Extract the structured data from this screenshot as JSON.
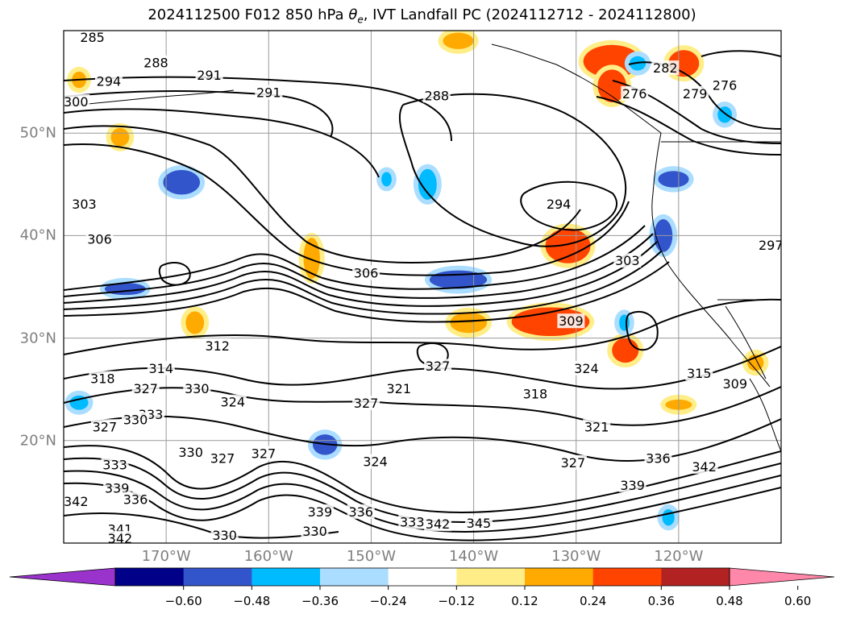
{
  "title": {
    "prefix": "2024112500 F012 850 hPa ",
    "symbol": "θ",
    "subscript": "e",
    "suffix": ", IVT Landfall PC (2024112712 - 2024112800)"
  },
  "map": {
    "projection": "equirectangular",
    "lon_range": [
      -180,
      -110
    ],
    "lat_range": [
      10,
      60
    ],
    "grid": true,
    "grid_color": "#999999",
    "coastline_color": "#000000",
    "lat_labels": [
      "50°N",
      "40°N",
      "30°N",
      "20°N"
    ],
    "lat_values": [
      50,
      40,
      30,
      20
    ],
    "lon_labels": [
      "170°W",
      "160°W",
      "150°W",
      "140°W",
      "130°W",
      "120°W"
    ],
    "lon_values": [
      -170,
      -160,
      -150,
      -140,
      -130,
      -120
    ],
    "contour_field": "850 hPa theta-e",
    "contour_labels": [
      {
        "text": "285",
        "lon": -177.2,
        "lat": 59.3
      },
      {
        "text": "288",
        "lon": -171.0,
        "lat": 56.8
      },
      {
        "text": "291",
        "lon": -165.8,
        "lat": 55.6
      },
      {
        "text": "294",
        "lon": -175.6,
        "lat": 55.0
      },
      {
        "text": "291",
        "lon": -160.0,
        "lat": 53.9
      },
      {
        "text": "300",
        "lon": -178.8,
        "lat": 53.0
      },
      {
        "text": "288",
        "lon": -143.6,
        "lat": 53.6
      },
      {
        "text": "282",
        "lon": -121.3,
        "lat": 56.3
      },
      {
        "text": "276",
        "lon": -124.3,
        "lat": 53.8
      },
      {
        "text": "279",
        "lon": -118.4,
        "lat": 53.8
      },
      {
        "text": "276",
        "lon": -115.5,
        "lat": 54.6
      },
      {
        "text": "294",
        "lon": -131.7,
        "lat": 43.0
      },
      {
        "text": "303",
        "lon": -178.0,
        "lat": 43.0
      },
      {
        "text": "306",
        "lon": -176.5,
        "lat": 39.6
      },
      {
        "text": "306",
        "lon": -150.5,
        "lat": 36.3
      },
      {
        "text": "303",
        "lon": -125.0,
        "lat": 37.5
      },
      {
        "text": "309",
        "lon": -130.5,
        "lat": 31.6
      },
      {
        "text": "312",
        "lon": -165.0,
        "lat": 29.2
      },
      {
        "text": "314",
        "lon": -170.5,
        "lat": 27.0
      },
      {
        "text": "327",
        "lon": -143.5,
        "lat": 27.2
      },
      {
        "text": "324",
        "lon": -129.0,
        "lat": 27.0
      },
      {
        "text": "315",
        "lon": -118.0,
        "lat": 26.5
      },
      {
        "text": "309",
        "lon": -114.5,
        "lat": 25.5
      },
      {
        "text": "318",
        "lon": -176.2,
        "lat": 26.0
      },
      {
        "text": "327",
        "lon": -172.0,
        "lat": 25.0
      },
      {
        "text": "330",
        "lon": -167.0,
        "lat": 25.0
      },
      {
        "text": "324",
        "lon": -163.5,
        "lat": 23.7
      },
      {
        "text": "327",
        "lon": -150.5,
        "lat": 23.6
      },
      {
        "text": "321",
        "lon": -147.3,
        "lat": 25.0
      },
      {
        "text": "318",
        "lon": -134.0,
        "lat": 24.5
      },
      {
        "text": "333",
        "lon": -171.5,
        "lat": 22.5
      },
      {
        "text": "330",
        "lon": -173.0,
        "lat": 22.0
      },
      {
        "text": "327",
        "lon": -176.0,
        "lat": 21.3
      },
      {
        "text": "321",
        "lon": -128.0,
        "lat": 21.3
      },
      {
        "text": "330",
        "lon": -167.6,
        "lat": 18.8
      },
      {
        "text": "327",
        "lon": -164.5,
        "lat": 18.2
      },
      {
        "text": "327",
        "lon": -160.5,
        "lat": 18.7
      },
      {
        "text": "324",
        "lon": -149.6,
        "lat": 17.9
      },
      {
        "text": "327",
        "lon": -130.3,
        "lat": 17.8
      },
      {
        "text": "336",
        "lon": -122.0,
        "lat": 18.2
      },
      {
        "text": "342",
        "lon": -117.5,
        "lat": 17.4
      },
      {
        "text": "333",
        "lon": -175.0,
        "lat": 17.6
      },
      {
        "text": "339",
        "lon": -174.8,
        "lat": 15.3
      },
      {
        "text": "336",
        "lon": -173.0,
        "lat": 14.2
      },
      {
        "text": "339",
        "lon": -124.5,
        "lat": 15.6
      },
      {
        "text": "342",
        "lon": -178.8,
        "lat": 14.0
      },
      {
        "text": "339",
        "lon": -155.0,
        "lat": 13.0
      },
      {
        "text": "336",
        "lon": -151.0,
        "lat": 13.0
      },
      {
        "text": "333",
        "lon": -146.0,
        "lat": 12.0
      },
      {
        "text": "342",
        "lon": -143.5,
        "lat": 11.8
      },
      {
        "text": "345",
        "lon": -139.5,
        "lat": 11.9
      },
      {
        "text": "341",
        "lon": -174.5,
        "lat": 11.3
      },
      {
        "text": "342",
        "lon": -174.5,
        "lat": 10.4
      },
      {
        "text": "330",
        "lon": -164.3,
        "lat": 10.7
      },
      {
        "text": "330",
        "lon": -155.5,
        "lat": 11.1
      },
      {
        "text": "297",
        "lon": -111.0,
        "lat": 39.0
      }
    ]
  },
  "colorbar": {
    "ticks": [
      "−0.60",
      "−0.48",
      "−0.36",
      "−0.24",
      "−0.12",
      "0.12",
      "0.24",
      "0.36",
      "0.48",
      "0.60"
    ],
    "levels": [
      -0.72,
      -0.6,
      -0.48,
      -0.36,
      -0.24,
      -0.12,
      0.12,
      0.24,
      0.36,
      0.48,
      0.6,
      0.72
    ],
    "colors": [
      "#9933cc",
      "#000088",
      "#3355cc",
      "#00bbff",
      "#aaddff",
      "#ffffff",
      "#ffee88",
      "#ffaa00",
      "#ff4400",
      "#b22222",
      "#ff88aa"
    ],
    "extend": "both"
  },
  "shaded_regions": [
    {
      "value": 0.36,
      "lon": -126.5,
      "lat": 57.0,
      "rx": 2.8,
      "ry": 1.6,
      "color": "#ff4400"
    },
    {
      "value": 0.36,
      "lon": -126.5,
      "lat": 54.6,
      "rx": 1.4,
      "ry": 1.6,
      "color": "#ff4400"
    },
    {
      "value": 0.36,
      "lon": -119.5,
      "lat": 56.8,
      "rx": 1.5,
      "ry": 1.3,
      "color": "#ff4400"
    },
    {
      "value": 0.36,
      "lon": -130.8,
      "lat": 39.0,
      "rx": 2.2,
      "ry": 1.7,
      "color": "#ff4400"
    },
    {
      "value": 0.36,
      "lon": -132.5,
      "lat": 31.6,
      "rx": 3.8,
      "ry": 1.4,
      "color": "#ff4400"
    },
    {
      "value": 0.36,
      "lon": -125.2,
      "lat": 28.8,
      "rx": 1.3,
      "ry": 1.2,
      "color": "#ff4400"
    },
    {
      "value": 0.24,
      "lon": -155.8,
      "lat": 37.8,
      "rx": 0.8,
      "ry": 2.0,
      "color": "#ffaa00"
    },
    {
      "value": 0.24,
      "lon": -167.2,
      "lat": 31.5,
      "rx": 0.9,
      "ry": 1.1,
      "color": "#ffaa00"
    },
    {
      "value": 0.24,
      "lon": -140.5,
      "lat": 31.5,
      "rx": 1.8,
      "ry": 1.0,
      "color": "#ffaa00"
    },
    {
      "value": 0.24,
      "lon": -174.5,
      "lat": 49.6,
      "rx": 0.9,
      "ry": 0.9,
      "color": "#ffaa00"
    },
    {
      "value": 0.24,
      "lon": -178.5,
      "lat": 55.2,
      "rx": 0.7,
      "ry": 0.8,
      "color": "#ffaa00"
    },
    {
      "value": 0.24,
      "lon": -141.5,
      "lat": 59.0,
      "rx": 1.5,
      "ry": 0.8,
      "color": "#ffaa00"
    },
    {
      "value": 0.24,
      "lon": -120.0,
      "lat": 23.5,
      "rx": 1.3,
      "ry": 0.5,
      "color": "#ffaa00"
    },
    {
      "value": 0.24,
      "lon": -112.5,
      "lat": 27.6,
      "rx": 0.8,
      "ry": 0.8,
      "color": "#ffaa00"
    },
    {
      "value": -0.36,
      "lon": -168.5,
      "lat": 45.2,
      "rx": 1.8,
      "ry": 1.2,
      "color": "#3355cc"
    },
    {
      "value": -0.36,
      "lon": -141.5,
      "lat": 35.7,
      "rx": 2.8,
      "ry": 0.9,
      "color": "#3355cc"
    },
    {
      "value": -0.36,
      "lon": -120.5,
      "lat": 45.5,
      "rx": 1.5,
      "ry": 0.8,
      "color": "#3355cc"
    },
    {
      "value": -0.36,
      "lon": -121.5,
      "lat": 40.0,
      "rx": 0.9,
      "ry": 1.6,
      "color": "#3355cc"
    },
    {
      "value": -0.36,
      "lon": -174.0,
      "lat": 34.8,
      "rx": 2.0,
      "ry": 0.6,
      "color": "#3355cc"
    },
    {
      "value": -0.36,
      "lon": -154.5,
      "lat": 19.6,
      "rx": 1.2,
      "ry": 1.0,
      "color": "#3355cc"
    },
    {
      "value": -0.24,
      "lon": -144.5,
      "lat": 45.0,
      "rx": 0.9,
      "ry": 1.5,
      "color": "#00bbff"
    },
    {
      "value": -0.24,
      "lon": -148.5,
      "lat": 45.5,
      "rx": 0.5,
      "ry": 0.7,
      "color": "#00bbff"
    },
    {
      "value": -0.24,
      "lon": -124.0,
      "lat": 56.8,
      "rx": 0.8,
      "ry": 0.7,
      "color": "#00bbff"
    },
    {
      "value": -0.24,
      "lon": -115.5,
      "lat": 51.8,
      "rx": 0.7,
      "ry": 0.8,
      "color": "#00bbff"
    },
    {
      "value": -0.24,
      "lon": -178.5,
      "lat": 23.7,
      "rx": 0.9,
      "ry": 0.7,
      "color": "#00bbff"
    },
    {
      "value": -0.24,
      "lon": -121.0,
      "lat": 12.5,
      "rx": 0.6,
      "ry": 0.8,
      "color": "#00bbff"
    },
    {
      "value": -0.24,
      "lon": -125.3,
      "lat": 31.5,
      "rx": 0.5,
      "ry": 0.8,
      "color": "#00bbff"
    }
  ]
}
